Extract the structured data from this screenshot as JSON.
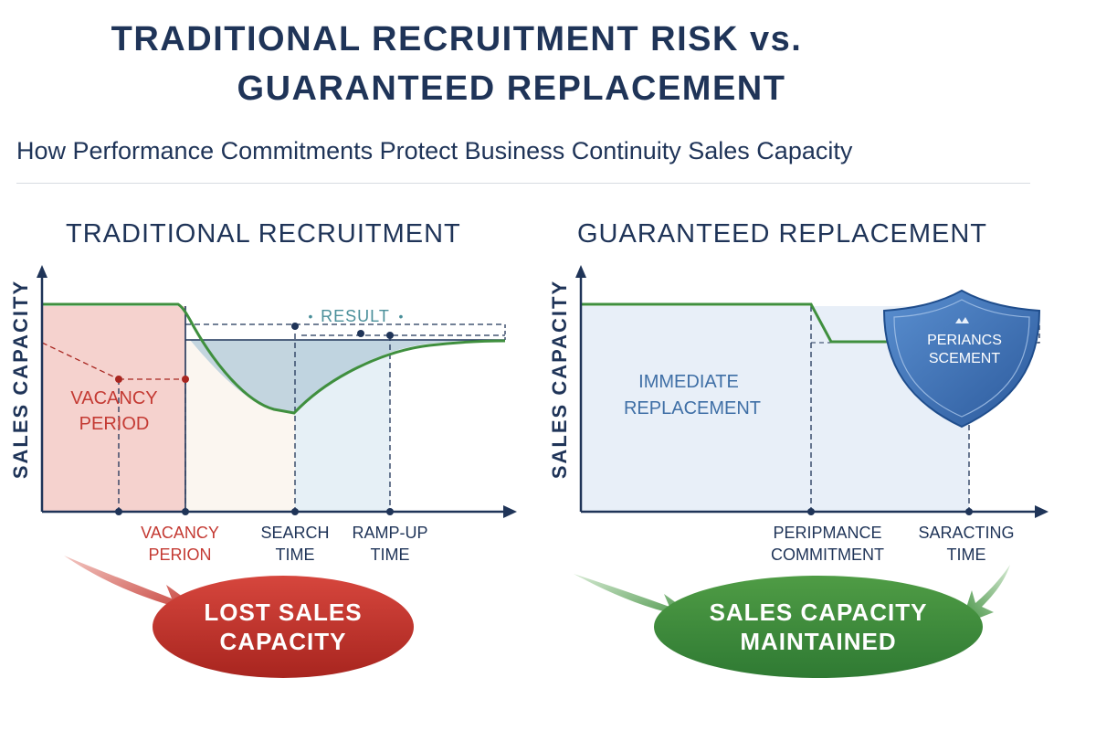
{
  "title": {
    "line1": "TRADITIONAL RECRUITMENT RISK vs.",
    "line2": "GUARANTEED REPLACEMENT"
  },
  "subtitle": "How Performance Commitments Protect Business Continuity Sales Capacity",
  "left_panel": {
    "heading": "TRADITIONAL RECRUITMENT",
    "y_axis_label": "SALES CAPACITY",
    "vacancy_label": [
      "VACANCY",
      "PERIOD"
    ],
    "result_label": "RESULT",
    "x_labels": [
      {
        "lines": [
          "VACANCY",
          "PERION"
        ]
      },
      {
        "lines": [
          "SEARCH",
          "TIME"
        ]
      },
      {
        "lines": [
          "RAMP-UP",
          "TIME"
        ]
      }
    ],
    "outcome": [
      "LOST SALES",
      "CAPACITY"
    ]
  },
  "right_panel": {
    "heading": "GUARANTEED REPLACEMENT",
    "y_axis_label": "SALES CAPACITY",
    "region_label": [
      "IMMEDIATE",
      "REPLACEMENT"
    ],
    "shield_text": [
      "PERIANCS",
      "SCEMENT"
    ],
    "x_labels": [
      {
        "lines": [
          "PERIPMANCE",
          "COMMITMENT"
        ]
      },
      {
        "lines": [
          "SARACTING",
          "TIME"
        ]
      }
    ],
    "outcome": [
      "SALES CAPACITY",
      "MAINTAINED"
    ]
  },
  "colors": {
    "navy": "#1f3458",
    "green": "#3f8f3e",
    "red": "#c43a33",
    "blue_text": "#3f6fa6",
    "shield": "#3c6fb4"
  }
}
